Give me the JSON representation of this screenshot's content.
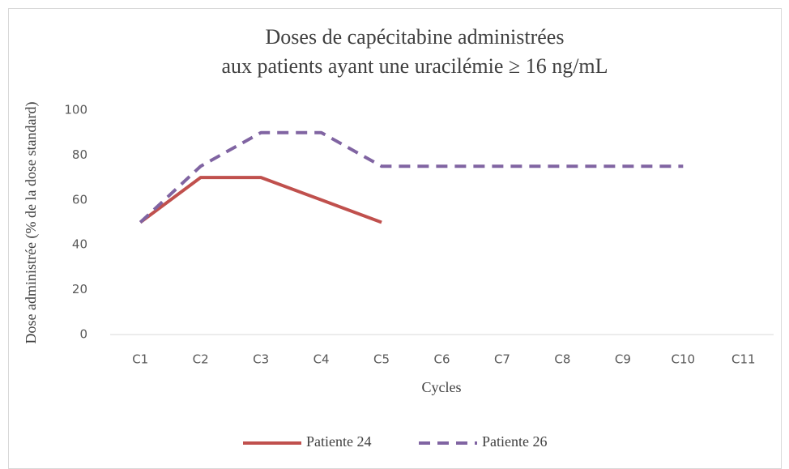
{
  "chart_data": {
    "type": "line",
    "title": [
      "Doses de capécitabine administrées",
      "aux patients ayant une uracilémie ≥  16 ng/mL"
    ],
    "y_label": "Dose administrée (% de la dose standard)",
    "x_label": "Cycles",
    "categories": [
      "C1",
      "C2",
      "C3",
      "C4",
      "C5",
      "C6",
      "C7",
      "C8",
      "C9",
      "C10",
      "C11"
    ],
    "series": [
      {
        "name": "Patiente 24",
        "color": "#c0504d",
        "dashed": false,
        "values": [
          50,
          70,
          70,
          60,
          50,
          null,
          null,
          null,
          null,
          null,
          null
        ]
      },
      {
        "name": "Patiente 26",
        "color": "#8064a2",
        "dashed": true,
        "values": [
          50,
          75,
          90,
          90,
          75,
          75,
          75,
          75,
          75,
          75,
          null
        ]
      }
    ],
    "ylim": [
      0,
      100
    ],
    "yticks": [
      0,
      20,
      40,
      60,
      80,
      100
    ],
    "grid": false,
    "legend": "bottom"
  }
}
